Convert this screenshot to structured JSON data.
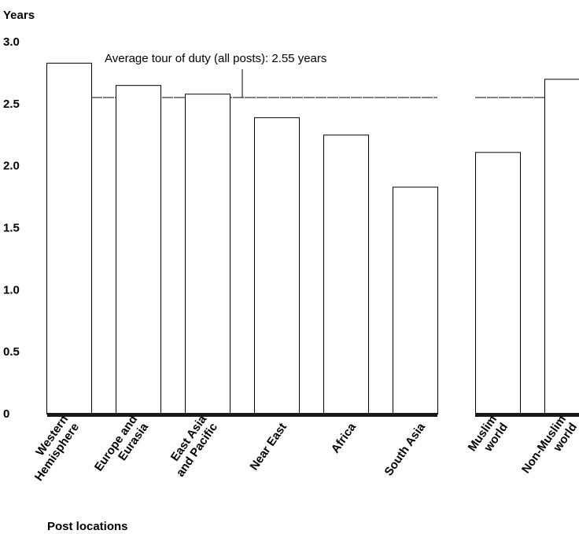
{
  "chart_data": {
    "type": "bar",
    "ylabel": "Years",
    "xlabel": "Post locations",
    "ylim": [
      0,
      3.0
    ],
    "yticks": [
      "0",
      "0.5",
      "1.0",
      "1.5",
      "2.0",
      "2.5",
      "3.0"
    ],
    "grid": false,
    "legend": "none",
    "groups": [
      {
        "categories": [
          [
            "Western",
            "Hemisphere"
          ],
          [
            "Europe and",
            "Eurasia"
          ],
          [
            "East Asia",
            "and Pacific"
          ],
          [
            "Near East"
          ],
          [
            "Africa"
          ],
          [
            "South Asia"
          ]
        ],
        "values": [
          2.83,
          2.65,
          2.58,
          2.39,
          2.25,
          1.83
        ]
      },
      {
        "categories": [
          [
            "Muslim",
            "world"
          ],
          [
            "Non-Muslim",
            "world"
          ]
        ],
        "values": [
          2.11,
          2.7
        ]
      }
    ],
    "reference_line": {
      "value": 2.55,
      "label": "Average tour of duty (all posts): 2.55 years"
    },
    "colors": {
      "bar_fill": "#ffffff",
      "bar_stroke": "#000000",
      "baseline": "#1a1a1a",
      "text": "#000000"
    }
  }
}
